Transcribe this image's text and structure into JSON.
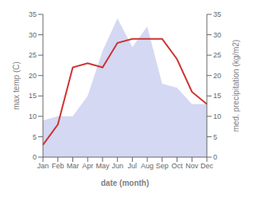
{
  "chart_data": {
    "type": "line",
    "categories": [
      "Jan",
      "Feb",
      "Mar",
      "Apr",
      "May",
      "Jun",
      "Jul",
      "Aug",
      "Sep",
      "Oct",
      "Nov",
      "Dec"
    ],
    "xlabel": "date (month)",
    "ylabel": "max temp (C)",
    "y2label": "med. precipitation (kg/m2)",
    "series": [
      {
        "type": "area",
        "color": "#b0b8e8",
        "axis": "y2",
        "values": [
          9,
          10,
          10,
          15,
          26,
          34,
          27,
          32,
          18,
          17,
          13,
          13
        ]
      },
      {
        "type": "line",
        "color": "#cc3333",
        "values": [
          3,
          8,
          22,
          23,
          22,
          28,
          29,
          29,
          29,
          24,
          16,
          13
        ]
      }
    ],
    "ylim": [
      0,
      35
    ],
    "yticks": [
      0,
      5,
      10,
      15,
      20,
      25,
      30,
      35
    ],
    "y2lim": [
      0,
      35
    ],
    "y2ticks": [
      0,
      5,
      10,
      15,
      20,
      25,
      30,
      35
    ],
    "grid": false
  }
}
